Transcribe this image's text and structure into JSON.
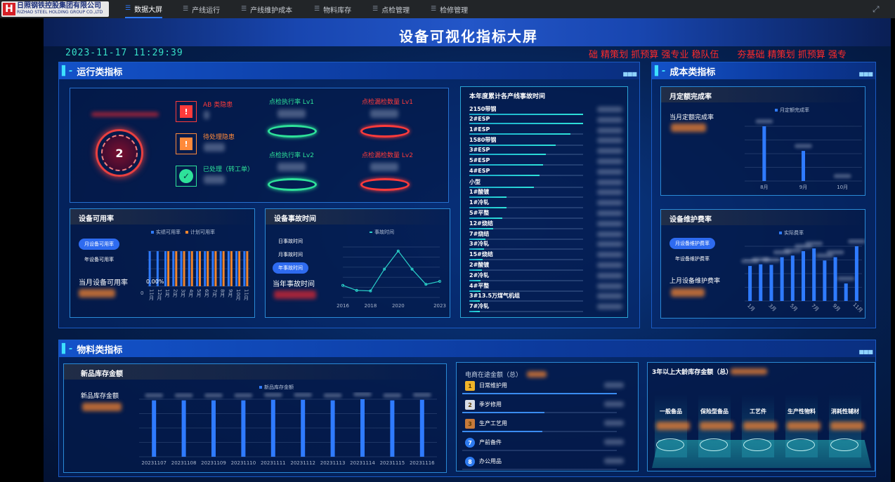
{
  "nav": {
    "logo_text": "日照钢铁控股集团有限公司",
    "logo_sub": "RIZHAO STEEL HOLDING GROUP CO.,LTD",
    "logo_mark": "H",
    "items": [
      {
        "label": "数据大屏",
        "active": true
      },
      {
        "label": "产线运行"
      },
      {
        "label": "产线维护成本"
      },
      {
        "label": "物料库存"
      },
      {
        "label": "点检管理"
      },
      {
        "label": "检修管理"
      }
    ],
    "menu_icon": "list-icon",
    "fullscreen_icon": "fullscreen-icon"
  },
  "header": {
    "title": "设备可视化指标大屏",
    "datetime": "2023-11-17 11:29:39",
    "marquee": "础 精策划 抓预算 强专业 稳队伍　　夯基础 精策划 抓预算 强专"
  },
  "operation": {
    "title": "运行类指标",
    "gauge_value": "2",
    "hazards": [
      {
        "label": "AB 类隐患",
        "icon": "warning-icon",
        "color": "#ff3b3b"
      },
      {
        "label": "待处理隐患",
        "icon": "warning-icon",
        "color": "#ff8a3b"
      },
      {
        "label": "已处理（转工单）",
        "icon": "check-circle-icon",
        "color": "#2ee29a"
      }
    ],
    "inspection": [
      {
        "label": "点检执行率 Lv1",
        "color": "#2ee29a"
      },
      {
        "label": "点检漏检数量 Lv1",
        "color": "#ff3b3b"
      },
      {
        "label": "点检执行率 Lv2",
        "color": "#2ee29a"
      },
      {
        "label": "点检漏检数量 Lv2",
        "color": "#ff3b3b"
      }
    ],
    "availability": {
      "title": "设备可用率",
      "tabs": [
        {
          "label": "月设备可用率",
          "active": true
        },
        {
          "label": "年设备可用率"
        }
      ],
      "current_label": "当月设备可用率",
      "chart_data": {
        "type": "bar",
        "series": [
          {
            "name": "实绩可用率",
            "color": "#2f7bff",
            "values": [
              100,
              100,
              100,
              100,
              100,
              100,
              100,
              100,
              100,
              100,
              100,
              100,
              100
            ]
          },
          {
            "name": "计划可用率",
            "color": "#f0852d",
            "values": [
              null,
              null,
              100,
              100,
              100,
              100,
              100,
              100,
              100,
              100,
              100,
              100,
              100
            ]
          }
        ],
        "categories": [
          "11月",
          "12月",
          "1月",
          "2月",
          "3月",
          "4月",
          "5月",
          "6月",
          "7月",
          "8月",
          "9月",
          "10月",
          "11月"
        ],
        "annotations": [
          "0.00%",
          "0"
        ]
      }
    },
    "accident": {
      "title": "设备事故时间",
      "tabs": [
        {
          "label": "日事故时间"
        },
        {
          "label": "月事故时间"
        },
        {
          "label": "年事故时间",
          "active": true
        }
      ],
      "current_label": "当年事故时间",
      "chart_data": {
        "type": "line",
        "series": [
          {
            "name": "事故时间",
            "color": "#2ad1c9",
            "values": [
              24,
              14,
              13,
              56,
              92,
              56,
              26,
              32
            ]
          }
        ],
        "x": [
          2016,
          2017,
          2018,
          2019,
          2020,
          2021,
          2022,
          2023
        ],
        "xticks": [
          "2016",
          "2018",
          "2020",
          "2023"
        ]
      }
    },
    "lines": {
      "title": "本年度累计各产线事故时间",
      "chart_data": {
        "type": "bar",
        "orientation": "horizontal",
        "categories": [
          "2150带钢",
          "2#ESP",
          "1#ESP",
          "1580带钢",
          "3#ESP",
          "5#ESP",
          "4#ESP",
          "小型",
          "1#酸镀",
          "1#冷轧",
          "5#平整",
          "12#烧结",
          "7#烧结",
          "3#冷轧",
          "15#烧结",
          "2#酸镀",
          "2#冷轧",
          "4#平整",
          "3#13.5万煤气机组",
          "7#冷轧"
        ],
        "values_percent_of_max": [
          100,
          100,
          89,
          76,
          67,
          65,
          62,
          57,
          33,
          33,
          29,
          21,
          14,
          13,
          12,
          11,
          10,
          10,
          9,
          9
        ]
      }
    }
  },
  "cost": {
    "title": "成本类指标",
    "quota": {
      "title": "月定额完成率",
      "current_label": "当月定额完成率",
      "chart_data": {
        "type": "bar",
        "series": [
          {
            "name": "月定额完成率",
            "color": "#2f7bff",
            "values_percent_of_max": [
              100,
              55,
              0
            ]
          }
        ],
        "categories": [
          "8月",
          "9月",
          "10月"
        ]
      }
    },
    "maint": {
      "title": "设备维护费率",
      "tabs": [
        {
          "label": "月设备维护费率",
          "active": true
        },
        {
          "label": "年设备维护费率"
        }
      ],
      "current_label": "上月设备维护费率",
      "chart_data": {
        "type": "bar",
        "series": [
          {
            "name": "实际费率",
            "color": "#2f7bff",
            "values_percent_of_max": [
              64,
              67,
              66,
              80,
              83,
              91,
              96,
              74,
              80,
              32,
              100
            ]
          }
        ],
        "categories": [
          "1月",
          "2月",
          "3月",
          "4月",
          "5月",
          "6月",
          "7月",
          "8月",
          "9月",
          "10月",
          "11月"
        ],
        "xticks": [
          "1月",
          "3月",
          "5月",
          "7月",
          "9月",
          "11月"
        ]
      }
    }
  },
  "material": {
    "title": "物料类指标",
    "stock": {
      "title": "新品库存金额",
      "current_label": "新品库存金额",
      "chart_data": {
        "type": "bar",
        "series": [
          {
            "name": "新品库存金额",
            "color": "#2f7bff",
            "values_percent_of_max": [
              98,
              98,
              98,
              98,
              99,
              99,
              98,
              100,
              98,
              99
            ]
          }
        ],
        "categories": [
          "20231107",
          "20231108",
          "20231109",
          "20231110",
          "20231111",
          "20231112",
          "20231113",
          "20231114",
          "20231115",
          "20231116"
        ]
      }
    },
    "ecommerce": {
      "title": "电商在途金额（总）",
      "items": [
        {
          "rank": "1",
          "label": "日常维护用",
          "icon": "crown-gold-icon",
          "fill": 100
        },
        {
          "rank": "2",
          "label": "季岁修用",
          "icon": "crown-silver-icon",
          "fill": 53
        },
        {
          "rank": "3",
          "label": "生产工艺用",
          "icon": "crown-bronze-icon",
          "fill": 52
        },
        {
          "rank": "7",
          "label": "产前备件",
          "fill": 0
        },
        {
          "rank": "8",
          "label": "办公用品",
          "fill": 0
        }
      ]
    },
    "aged": {
      "title": "3年以上大龄库存金额（总）",
      "categories": [
        "一般备品",
        "保险型备品",
        "工艺件",
        "生产性物料",
        "消耗性辅材"
      ]
    }
  }
}
